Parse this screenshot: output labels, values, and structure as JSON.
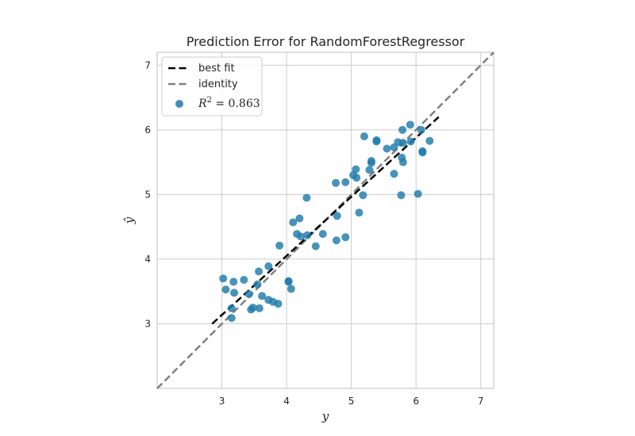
{
  "chart_data": {
    "type": "scatter",
    "title": "Prediction Error for RandomForestRegressor",
    "xlabel": "y",
    "ylabel": "ŷ",
    "xlim": [
      2.0,
      7.2
    ],
    "ylim": [
      2.0,
      7.2
    ],
    "xticks": [
      "3",
      "4",
      "5",
      "6",
      "7"
    ],
    "yticks": [
      "3",
      "4",
      "5",
      "6",
      "7"
    ],
    "grid": true,
    "legend_position": "top-left",
    "legend": {
      "best_fit": "best fit",
      "identity": "identity",
      "r2_label": "R",
      "r2_sup": "2",
      "r2_value": " = 0.863"
    },
    "colors": {
      "points": "#1f7bab",
      "best_fit": "#000000",
      "identity": "#808080",
      "grid": "#cccccc",
      "frame": "#cccccc"
    },
    "best_fit_line": {
      "x": [
        2.85,
        6.35
      ],
      "y": [
        3.0,
        6.2
      ]
    },
    "identity_line": {
      "x": [
        2.0,
        7.2
      ],
      "y": [
        2.0,
        7.2
      ]
    },
    "points": [
      {
        "x": 3.15,
        "y": 3.09
      },
      {
        "x": 3.45,
        "y": 3.22
      },
      {
        "x": 3.58,
        "y": 3.24
      },
      {
        "x": 3.15,
        "y": 3.24
      },
      {
        "x": 3.48,
        "y": 3.25
      },
      {
        "x": 3.87,
        "y": 3.31
      },
      {
        "x": 3.79,
        "y": 3.34
      },
      {
        "x": 3.72,
        "y": 3.37
      },
      {
        "x": 3.62,
        "y": 3.43
      },
      {
        "x": 3.42,
        "y": 3.46
      },
      {
        "x": 3.19,
        "y": 3.48
      },
      {
        "x": 3.06,
        "y": 3.53
      },
      {
        "x": 4.07,
        "y": 3.54
      },
      {
        "x": 3.55,
        "y": 3.61
      },
      {
        "x": 3.18,
        "y": 3.65
      },
      {
        "x": 4.03,
        "y": 3.66
      },
      {
        "x": 4.03,
        "y": 3.65
      },
      {
        "x": 3.34,
        "y": 3.68
      },
      {
        "x": 3.02,
        "y": 3.7
      },
      {
        "x": 3.57,
        "y": 3.81
      },
      {
        "x": 3.72,
        "y": 3.89
      },
      {
        "x": 4.45,
        "y": 4.2
      },
      {
        "x": 3.89,
        "y": 4.21
      },
      {
        "x": 4.77,
        "y": 4.29
      },
      {
        "x": 4.91,
        "y": 4.34
      },
      {
        "x": 4.22,
        "y": 4.35
      },
      {
        "x": 4.32,
        "y": 4.37
      },
      {
        "x": 4.16,
        "y": 4.39
      },
      {
        "x": 4.56,
        "y": 4.39
      },
      {
        "x": 4.1,
        "y": 4.57
      },
      {
        "x": 4.2,
        "y": 4.63
      },
      {
        "x": 4.78,
        "y": 4.67
      },
      {
        "x": 5.12,
        "y": 4.72
      },
      {
        "x": 4.31,
        "y": 4.95
      },
      {
        "x": 5.18,
        "y": 4.99
      },
      {
        "x": 5.77,
        "y": 4.99
      },
      {
        "x": 6.03,
        "y": 5.01
      },
      {
        "x": 4.76,
        "y": 5.18
      },
      {
        "x": 4.91,
        "y": 5.19
      },
      {
        "x": 5.08,
        "y": 5.26
      },
      {
        "x": 5.03,
        "y": 5.3
      },
      {
        "x": 5.66,
        "y": 5.32
      },
      {
        "x": 5.07,
        "y": 5.39
      },
      {
        "x": 5.28,
        "y": 5.38
      },
      {
        "x": 5.31,
        "y": 5.49
      },
      {
        "x": 5.31,
        "y": 5.52
      },
      {
        "x": 5.8,
        "y": 5.5
      },
      {
        "x": 5.78,
        "y": 5.57
      },
      {
        "x": 6.1,
        "y": 5.65
      },
      {
        "x": 6.1,
        "y": 5.67
      },
      {
        "x": 5.55,
        "y": 5.71
      },
      {
        "x": 5.66,
        "y": 5.73
      },
      {
        "x": 5.8,
        "y": 5.8
      },
      {
        "x": 5.72,
        "y": 5.81
      },
      {
        "x": 5.92,
        "y": 5.82
      },
      {
        "x": 5.39,
        "y": 5.82
      },
      {
        "x": 5.39,
        "y": 5.84
      },
      {
        "x": 6.21,
        "y": 5.83
      },
      {
        "x": 5.2,
        "y": 5.9
      },
      {
        "x": 5.79,
        "y": 6.0
      },
      {
        "x": 6.08,
        "y": 6.0
      },
      {
        "x": 5.91,
        "y": 6.08
      }
    ]
  }
}
